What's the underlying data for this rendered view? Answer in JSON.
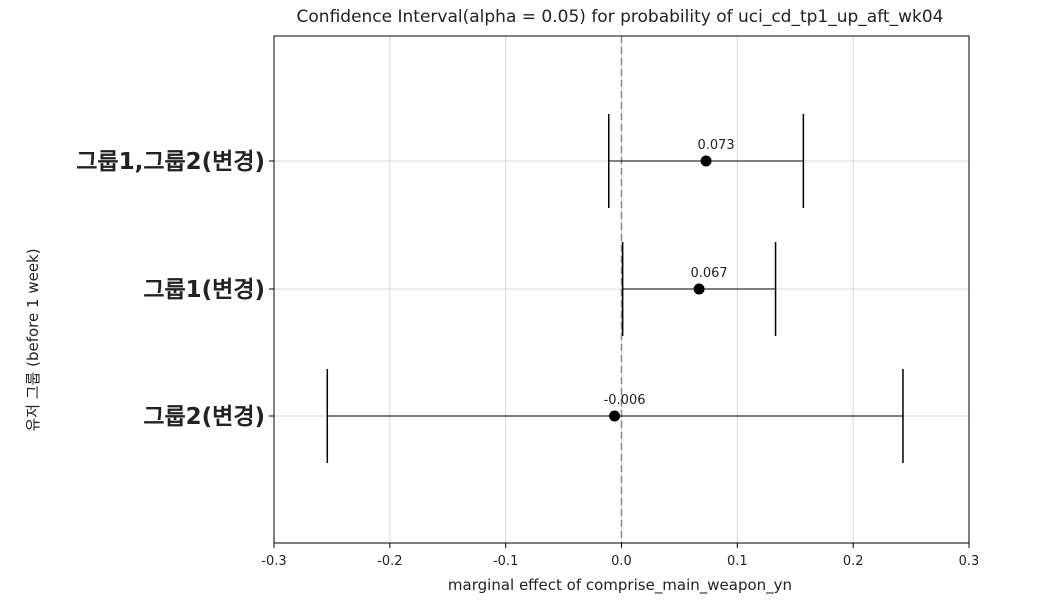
{
  "chart_data": {
    "type": "errorbar",
    "title": "Confidence Interval(alpha = 0.05) for probability of uci_cd_tp1_up_aft_wk04",
    "xlabel": "marginal effect of comprise_main_weapon_yn",
    "ylabel": "유저 그룹 (before 1 week)",
    "xlim": [
      -0.3,
      0.3
    ],
    "xticks": [
      "-0.3",
      "-0.2",
      "-0.1",
      "0.0",
      "0.1",
      "0.2",
      "0.3"
    ],
    "xtick_values": [
      -0.3,
      -0.2,
      -0.1,
      0.0,
      0.1,
      0.2,
      0.3
    ],
    "grid": true,
    "reference_line_x": 0.0,
    "point_color": "#000000",
    "line_color": "#000000",
    "grid_color": "#d9d9d9",
    "ref_line_color": "#888888",
    "groups": [
      {
        "label": "그룹1,그룹2(변경)",
        "estimate": 0.073,
        "estimate_label": "0.073",
        "ci_low": -0.011,
        "ci_high": 0.157
      },
      {
        "label": "그룹1(변경)",
        "estimate": 0.067,
        "estimate_label": "0.067",
        "ci_low": 0.001,
        "ci_high": 0.133
      },
      {
        "label": "그룹2(변경)",
        "estimate": -0.006,
        "estimate_label": "-0.006",
        "ci_low": -0.254,
        "ci_high": 0.243
      }
    ]
  }
}
